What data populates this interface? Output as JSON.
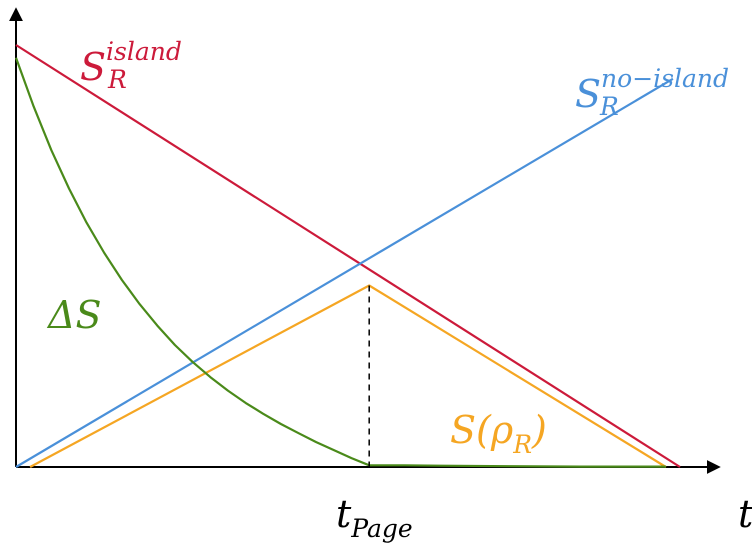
{
  "chart_data": {
    "type": "line",
    "title": "",
    "xlabel": "t",
    "ylabel": "",
    "xlim": [
      0,
      1.05
    ],
    "ylim": [
      0,
      1.05
    ],
    "grid": false,
    "legend": "none",
    "x_tick_labels": [
      {
        "x": 0.5,
        "base": "t",
        "sub": "Page"
      }
    ],
    "page_time": 0.5,
    "series": [
      {
        "key": "island",
        "label_base": "S",
        "label_sup": "island",
        "label_sub": "R",
        "color": "#cc1a3a",
        "x": [
          0,
          0.94
        ],
        "y": [
          1.0,
          0.0
        ]
      },
      {
        "key": "no_island",
        "label_base": "S",
        "label_sup": "no−island",
        "label_sub": "R",
        "color": "#4a90d9",
        "x": [
          0,
          0.93
        ],
        "y": [
          0.0,
          0.92
        ]
      },
      {
        "key": "rho",
        "label_base": "S(ρ",
        "label_sub": "R",
        "label_tail": ")",
        "color": "#f5a623",
        "x": [
          0.02,
          0.5,
          0.92
        ],
        "y": [
          0.0,
          0.43,
          0.0
        ]
      },
      {
        "key": "delta",
        "label_base": "ΔS",
        "color": "#4a8a1a",
        "x": [
          0.0,
          0.025,
          0.05,
          0.075,
          0.1,
          0.125,
          0.15,
          0.175,
          0.2,
          0.225,
          0.25,
          0.275,
          0.3,
          0.325,
          0.35,
          0.375,
          0.4,
          0.425,
          0.45,
          0.475,
          0.5,
          0.55,
          0.6,
          0.7,
          0.8,
          0.92
        ],
        "y": [
          0.97,
          0.854,
          0.751,
          0.66,
          0.579,
          0.507,
          0.443,
          0.386,
          0.335,
          0.289,
          0.249,
          0.213,
          0.181,
          0.152,
          0.126,
          0.102,
          0.08,
          0.059,
          0.04,
          0.021,
          0.004,
          0.004,
          0.003,
          0.002,
          0.001,
          0.001
        ]
      }
    ]
  }
}
